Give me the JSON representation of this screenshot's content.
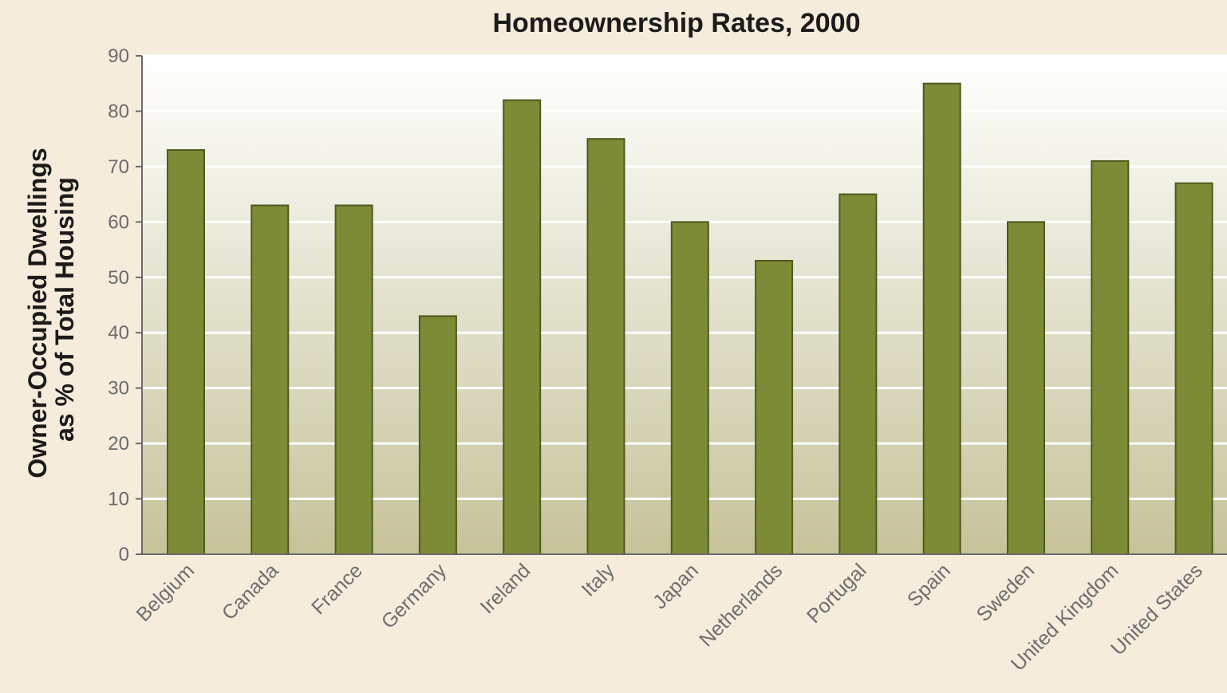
{
  "chart_data": {
    "type": "bar",
    "title": "Homeownership Rates, 2000",
    "xlabel": "",
    "ylabel_lines": [
      "Owner-Occupied Dwellings",
      "as % of Total Housing"
    ],
    "ylim": [
      0,
      90
    ],
    "yticks": [
      0,
      10,
      20,
      30,
      40,
      50,
      60,
      70,
      80,
      90
    ],
    "grid": true,
    "categories": [
      "Belgium",
      "Canada",
      "France",
      "Germany",
      "Ireland",
      "Italy",
      "Japan",
      "Netherlands",
      "Portugal",
      "Spain",
      "Sweden",
      "United Kingdom",
      "United States"
    ],
    "values": [
      73,
      63,
      63,
      43,
      82,
      75,
      60,
      53,
      65,
      85,
      60,
      71,
      67
    ]
  },
  "colors": {
    "bar": "#7d8a36",
    "bar_edge": "#4f5a1c",
    "plot_top": "#ffffff",
    "plot_bottom": "#c6c39a",
    "gridline": "#ffffff",
    "axis": "#6b6b6b",
    "background": "#f5ecdb"
  }
}
